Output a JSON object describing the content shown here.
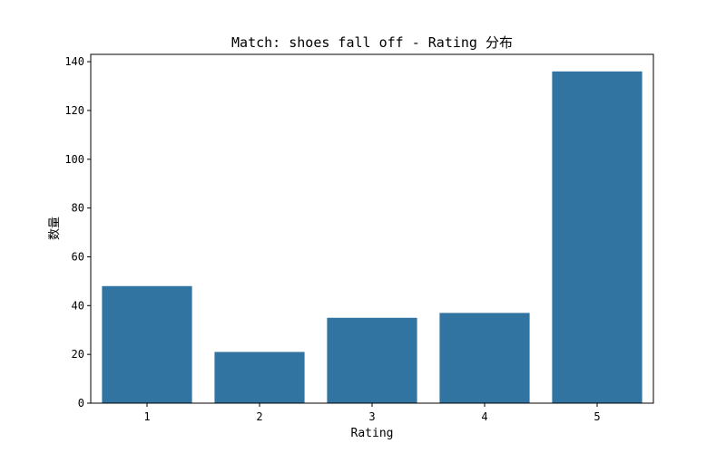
{
  "chart_data": {
    "type": "bar",
    "title": "Match: shoes fall off - Rating 分布",
    "xlabel": "Rating",
    "ylabel": "数量",
    "categories": [
      "1",
      "2",
      "3",
      "4",
      "5"
    ],
    "values": [
      48,
      21,
      35,
      37,
      136
    ],
    "ylim": [
      0,
      143
    ],
    "yticks": [
      0,
      20,
      40,
      60,
      80,
      100,
      120,
      140
    ],
    "bar_color": "#3274a1",
    "grid": false,
    "legend": false
  }
}
